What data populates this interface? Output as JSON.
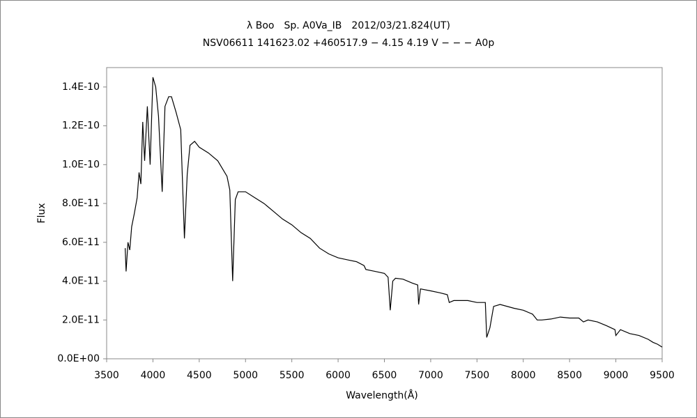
{
  "chart_data": {
    "type": "line",
    "title": "λ Boo　Sp. A0Va_IB　2012/03/21.824(UT)",
    "subtitle": "NSV06611 141623.02 +460517.9 − 4.15 4.19 V − − − A0p",
    "x_label": "Wavelength(Å)",
    "y_label": "Flux",
    "xlim": [
      3500,
      9500
    ],
    "xticks": [
      3500,
      4000,
      4500,
      5000,
      5500,
      6000,
      6500,
      7000,
      7500,
      8000,
      8500,
      9000,
      9500
    ],
    "ylim": [
      0,
      1.5e-10
    ],
    "yticks": [
      {
        "value": 0,
        "label": "0.0E+00"
      },
      {
        "value": 2e-11,
        "label": "2.0E-11"
      },
      {
        "value": 4e-11,
        "label": "4.0E-11"
      },
      {
        "value": 6e-11,
        "label": "6.0E-11"
      },
      {
        "value": 8e-11,
        "label": "8.0E-11"
      },
      {
        "value": 1e-10,
        "label": "1.0E-10"
      },
      {
        "value": 1.2e-10,
        "label": "1.2E-10"
      },
      {
        "value": 1.4e-10,
        "label": "1.4E-10"
      }
    ],
    "color": "#000000",
    "x": [
      3700,
      3710,
      3730,
      3750,
      3770,
      3800,
      3830,
      3850,
      3870,
      3890,
      3910,
      3940,
      3970,
      4000,
      4030,
      4060,
      4100,
      4130,
      4170,
      4200,
      4250,
      4300,
      4340,
      4370,
      4400,
      4450,
      4500,
      4600,
      4700,
      4800,
      4830,
      4861,
      4890,
      4920,
      5000,
      5100,
      5200,
      5300,
      5400,
      5500,
      5600,
      5700,
      5800,
      5900,
      6000,
      6100,
      6200,
      6280,
      6300,
      6400,
      6500,
      6540,
      6563,
      6590,
      6620,
      6700,
      6800,
      6860,
      6870,
      6890,
      7000,
      7100,
      7180,
      7200,
      7250,
      7300,
      7400,
      7500,
      7590,
      7605,
      7640,
      7680,
      7750,
      7900,
      8000,
      8100,
      8150,
      8200,
      8300,
      8400,
      8500,
      8600,
      8650,
      8700,
      8800,
      8900,
      8990,
      9000,
      9050,
      9150,
      9250,
      9350,
      9400,
      9450,
      9500
    ],
    "values": [
      5.7e-11,
      4.5e-11,
      6e-11,
      5.6e-11,
      6.8e-11,
      7.5e-11,
      8.3e-11,
      9.6e-11,
      9e-11,
      1.22e-10,
      1.02e-10,
      1.3e-10,
      1e-10,
      1.45e-10,
      1.4e-10,
      1.25e-10,
      8.6e-11,
      1.3e-10,
      1.35e-10,
      1.35e-10,
      1.27e-10,
      1.18e-10,
      6.2e-11,
      9.5e-11,
      1.1e-10,
      1.12e-10,
      1.09e-10,
      1.06e-10,
      1.02e-10,
      9.4e-11,
      8.7e-11,
      4e-11,
      8.2e-11,
      8.6e-11,
      8.6e-11,
      8.3e-11,
      8e-11,
      7.6e-11,
      7.2e-11,
      6.9e-11,
      6.5e-11,
      6.2e-11,
      5.7e-11,
      5.4e-11,
      5.2e-11,
      5.1e-11,
      5e-11,
      4.8e-11,
      4.6e-11,
      4.5e-11,
      4.4e-11,
      4.2e-11,
      2.5e-11,
      4e-11,
      4.15e-11,
      4.1e-11,
      3.9e-11,
      3.8e-11,
      2.8e-11,
      3.6e-11,
      3.5e-11,
      3.4e-11,
      3.3e-11,
      2.9e-11,
      3e-11,
      3e-11,
      3e-11,
      2.9e-11,
      2.9e-11,
      1.1e-11,
      1.6e-11,
      2.7e-11,
      2.8e-11,
      2.6e-11,
      2.5e-11,
      2.3e-11,
      2e-11,
      2e-11,
      2.05e-11,
      2.15e-11,
      2.1e-11,
      2.1e-11,
      1.9e-11,
      2e-11,
      1.9e-11,
      1.7e-11,
      1.5e-11,
      1.2e-11,
      1.5e-11,
      1.3e-11,
      1.2e-11,
      1e-11,
      8.5e-12,
      7.5e-12,
      6e-12
    ]
  }
}
